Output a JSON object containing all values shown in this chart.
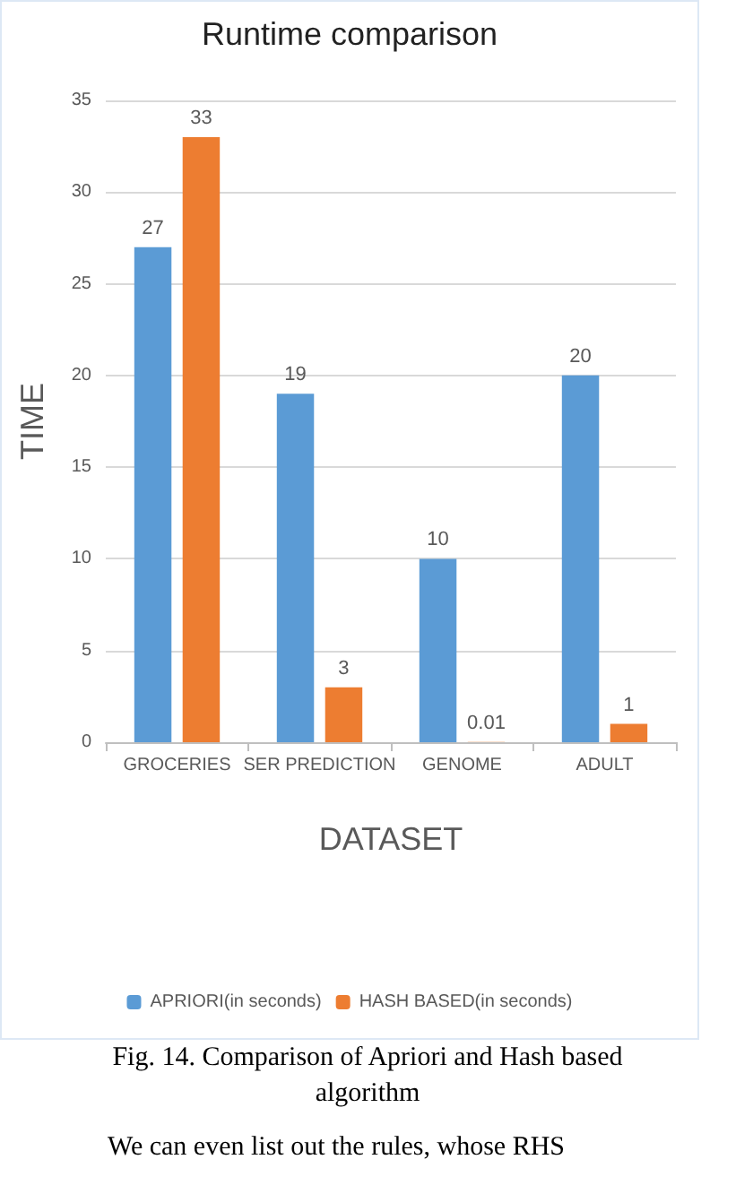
{
  "chart_data": {
    "type": "bar",
    "title": "Runtime comparison",
    "xlabel": "DATASET",
    "ylabel": "TIME",
    "categories": [
      "GROCERIES",
      "SER PREDICTION",
      "GENOME",
      "ADULT"
    ],
    "series": [
      {
        "name": "APRIORI(in seconds)",
        "color": "#5b9bd5",
        "values": [
          27,
          19,
          10,
          20
        ]
      },
      {
        "name": "HASH BASED(in seconds)",
        "color": "#ed7d31",
        "values": [
          33,
          3,
          0.01,
          1
        ]
      }
    ],
    "ylim": [
      0,
      35
    ],
    "yticks": [
      0,
      5,
      10,
      15,
      20,
      25,
      30,
      35
    ],
    "grid": "y",
    "legend": "bottom",
    "data_labels": true,
    "annotations": [
      "Fig. 14. Comparison of  Apriori and Hash based algorithm",
      "We can even list out the rules, whose RHS"
    ]
  }
}
